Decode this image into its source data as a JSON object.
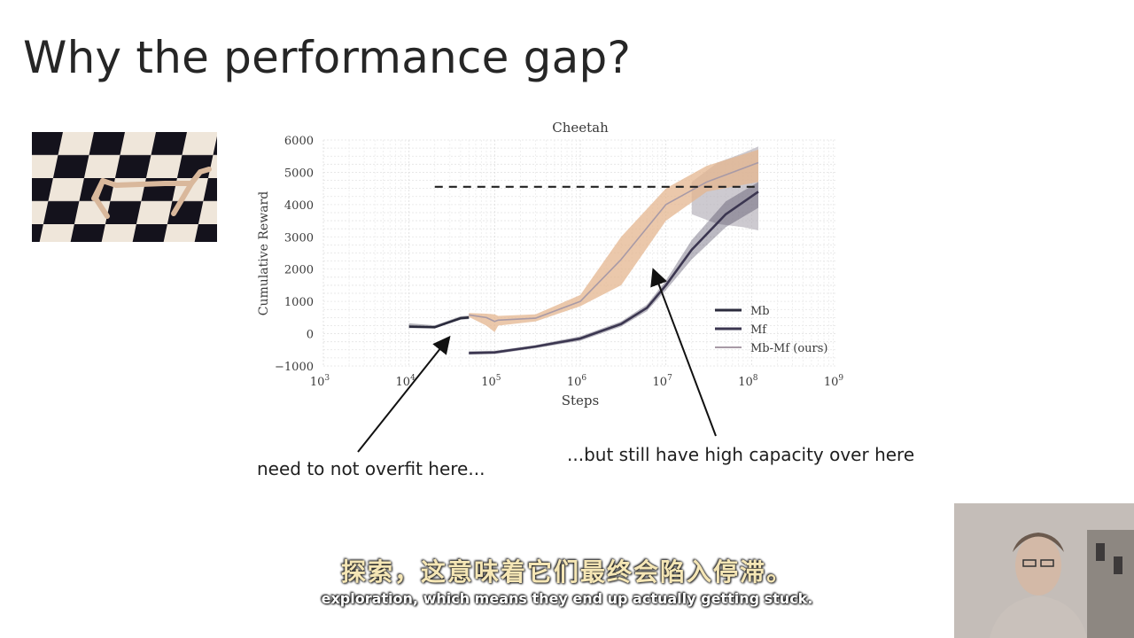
{
  "slide": {
    "title": "Why the performance gap?"
  },
  "annotations": {
    "left": "need to not overfit here...",
    "right": "...but still have high capacity over here"
  },
  "subtitles": {
    "zh": "探索，这意味着它们最终会陷入停滞。",
    "en": "exploration, which means they end up actually getting stuck."
  },
  "chart_data": {
    "type": "line",
    "title": "Cheetah",
    "xlabel": "Steps",
    "ylabel": "Cumulative Reward",
    "xscale": "log",
    "xlim": [
      1000,
      1000000000
    ],
    "ylim": [
      -1000,
      6000
    ],
    "y_ticks": [
      "6000",
      "5000",
      "4000",
      "3000",
      "2000",
      "1000",
      "0",
      "−1000"
    ],
    "x_ticks": [
      {
        "base": "10",
        "exp": "3"
      },
      {
        "base": "10",
        "exp": "4"
      },
      {
        "base": "10",
        "exp": "5"
      },
      {
        "base": "10",
        "exp": "6"
      },
      {
        "base": "10",
        "exp": "7"
      },
      {
        "base": "10",
        "exp": "8"
      },
      {
        "base": "10",
        "exp": "9"
      }
    ],
    "grid": true,
    "legend_position": "bottom-right",
    "reference_line_y": 4550,
    "series": [
      {
        "name": "Mb",
        "color": "#2b2b3d",
        "x": [
          10000,
          20000,
          40000,
          50000
        ],
        "y": [
          220,
          200,
          480,
          500
        ],
        "band": [
          [
            170,
            320
          ],
          [
            170,
            260
          ],
          [
            430,
            540
          ],
          [
            450,
            560
          ]
        ]
      },
      {
        "name": "Mf",
        "color": "#3b3650",
        "x": [
          50000,
          100000,
          300000,
          1000000,
          3000000,
          6000000,
          10000000,
          20000000,
          50000000,
          120000000
        ],
        "y": [
          -600,
          -580,
          -400,
          -150,
          300,
          800,
          1500,
          2600,
          3700,
          4400
        ],
        "band": [
          [
            -650,
            -540
          ],
          [
            -630,
            -530
          ],
          [
            -450,
            -350
          ],
          [
            -220,
            -80
          ],
          [
            220,
            380
          ],
          [
            700,
            900
          ],
          [
            1350,
            1650
          ],
          [
            2300,
            2900
          ],
          [
            3300,
            4100
          ],
          [
            3900,
            4700
          ]
        ]
      },
      {
        "name": "Mb-Mf (ours)",
        "color": "#a89aa6",
        "band_color": "#e4b58f",
        "x": [
          50000,
          80000,
          100000,
          110000,
          300000,
          1000000,
          3000000,
          10000000,
          30000000,
          120000000
        ],
        "y": [
          580,
          500,
          380,
          420,
          480,
          1000,
          2300,
          4000,
          4700,
          5300
        ],
        "band": [
          [
            520,
            640
          ],
          [
            250,
            620
          ],
          [
            50,
            600
          ],
          [
            250,
            550
          ],
          [
            380,
            600
          ],
          [
            850,
            1200
          ],
          [
            1500,
            3000
          ],
          [
            3500,
            4500
          ],
          [
            4400,
            5200
          ],
          [
            4700,
            5700
          ]
        ]
      }
    ],
    "extra_band": {
      "color": "#b8b3bc",
      "x": [
        20000000,
        40000000,
        80000000,
        120000000
      ],
      "lower": [
        3700,
        3400,
        3300,
        3200
      ],
      "upper": [
        4700,
        5300,
        5600,
        5800
      ]
    }
  }
}
